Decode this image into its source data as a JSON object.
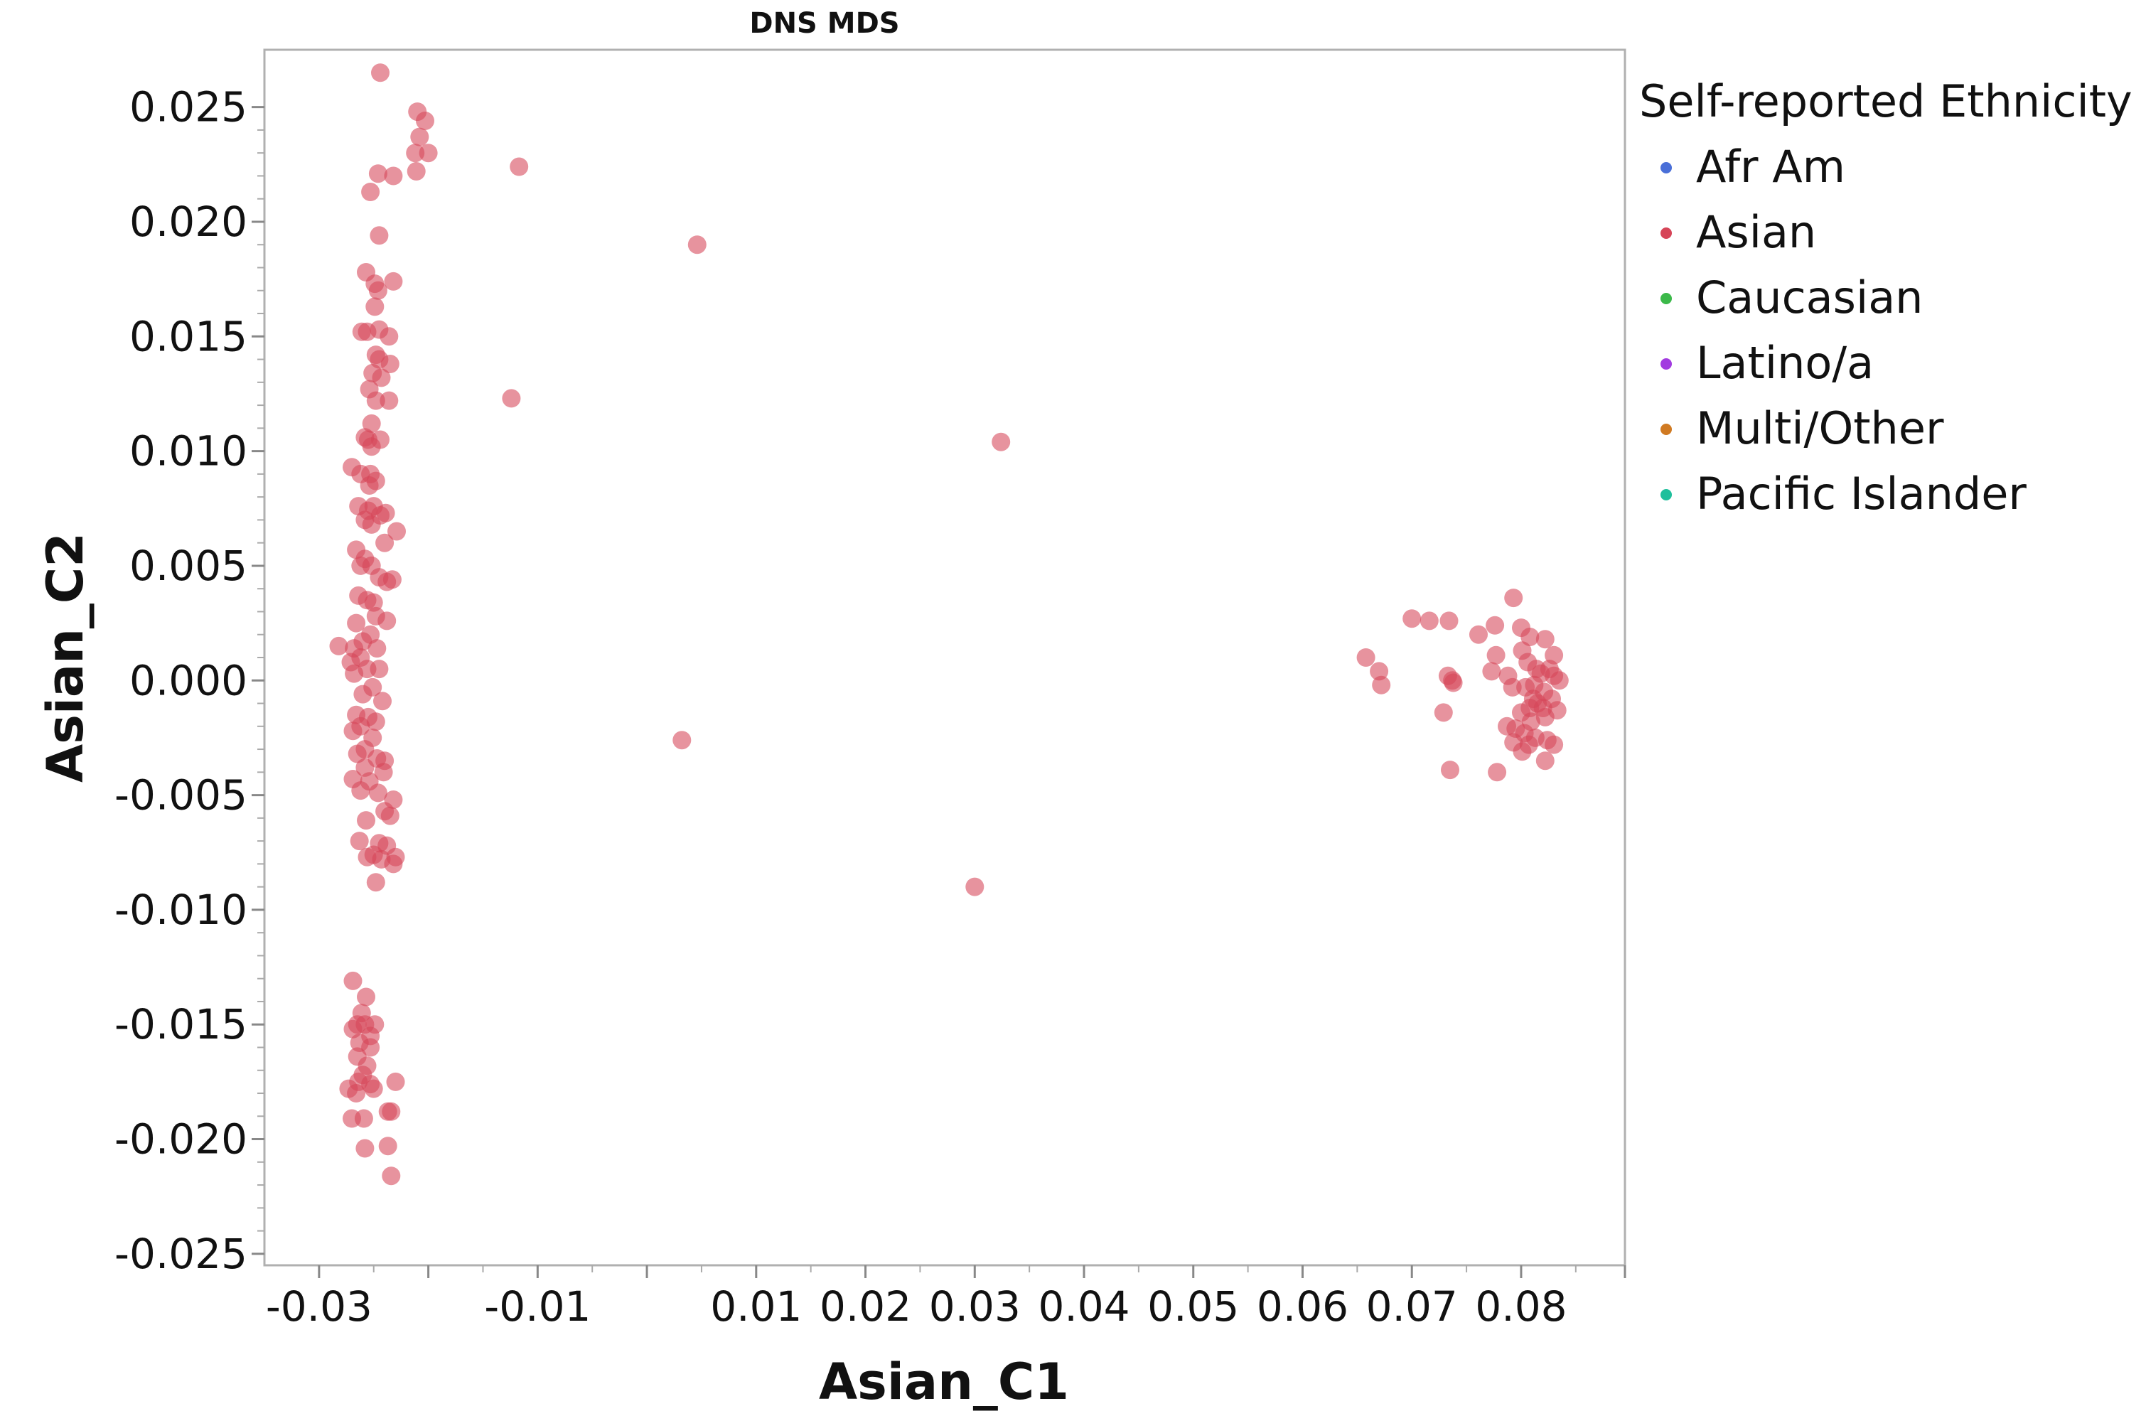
{
  "chart_data": {
    "type": "scatter",
    "title": "DNS MDS",
    "xlabel": "Asian_C1",
    "ylabel": "Asian_C2",
    "xlim": [
      -0.035,
      0.0895
    ],
    "ylim": [
      -0.0255,
      0.0275
    ],
    "x_ticks": [
      "-0.03",
      "-0.01",
      "0.01",
      "0.02",
      "0.03",
      "0.04",
      "0.05",
      "0.06",
      "0.07",
      "0.08"
    ],
    "y_ticks": [
      "0.025",
      "0.020",
      "0.015",
      "0.010",
      "0.005",
      "0.000",
      "-0.005",
      "-0.010",
      "-0.015",
      "-0.020",
      "-0.025"
    ],
    "grid": false,
    "legend": {
      "title": "Self-reported Ethnicity",
      "placement": "right",
      "entries": [
        {
          "name": "Afr Am",
          "color": "#4a6fd8"
        },
        {
          "name": "Asian",
          "color": "#d64558"
        },
        {
          "name": "Caucasian",
          "color": "#3cb94a"
        },
        {
          "name": "Latino/a",
          "color": "#a23be0"
        },
        {
          "name": "Multi/Other",
          "color": "#d07a22"
        },
        {
          "name": "Pacific Islander",
          "color": "#1fbf9c"
        }
      ]
    },
    "series": [
      {
        "name": "Asian",
        "color": "#d64558",
        "points": [
          [
            -0.0244,
            0.0265
          ],
          [
            -0.021,
            0.0248
          ],
          [
            -0.0203,
            0.0244
          ],
          [
            -0.0208,
            0.0237
          ],
          [
            -0.0212,
            0.023
          ],
          [
            -0.02,
            0.023
          ],
          [
            -0.0211,
            0.0222
          ],
          [
            -0.0232,
            0.022
          ],
          [
            -0.0246,
            0.0221
          ],
          [
            -0.0253,
            0.0213
          ],
          [
            -0.0245,
            0.0194
          ],
          [
            -0.0117,
            0.0224
          ],
          [
            0.0046,
            0.019
          ],
          [
            -0.0124,
            0.0123
          ],
          [
            0.0324,
            0.0104
          ],
          [
            0.0032,
            -0.0026
          ],
          [
            0.03,
            -0.009
          ],
          [
            -0.0257,
            0.0178
          ],
          [
            -0.0249,
            0.0173
          ],
          [
            -0.0232,
            0.0174
          ],
          [
            -0.0246,
            0.017
          ],
          [
            -0.0249,
            0.0163
          ],
          [
            -0.0245,
            0.0153
          ],
          [
            -0.0261,
            0.0152
          ],
          [
            -0.0256,
            0.0152
          ],
          [
            -0.0236,
            0.015
          ],
          [
            -0.0248,
            0.0142
          ],
          [
            -0.0245,
            0.014
          ],
          [
            -0.0235,
            0.0138
          ],
          [
            -0.0251,
            0.0134
          ],
          [
            -0.0243,
            0.0132
          ],
          [
            -0.0254,
            0.0127
          ],
          [
            -0.0236,
            0.0122
          ],
          [
            -0.0248,
            0.0122
          ],
          [
            -0.0252,
            0.0112
          ],
          [
            -0.0244,
            0.0105
          ],
          [
            -0.0258,
            0.0106
          ],
          [
            -0.0255,
            0.0105
          ],
          [
            -0.0252,
            0.0102
          ],
          [
            -0.027,
            0.0093
          ],
          [
            -0.0262,
            0.009
          ],
          [
            -0.0253,
            0.009
          ],
          [
            -0.0248,
            0.0087
          ],
          [
            -0.0254,
            0.0085
          ],
          [
            -0.0264,
            0.0076
          ],
          [
            -0.025,
            0.0076
          ],
          [
            -0.0255,
            0.0074
          ],
          [
            -0.0244,
            0.0072
          ],
          [
            -0.0258,
            0.007
          ],
          [
            -0.0239,
            0.0073
          ],
          [
            -0.0229,
            0.0065
          ],
          [
            -0.0252,
            0.0068
          ],
          [
            -0.024,
            0.006
          ],
          [
            -0.0266,
            0.0057
          ],
          [
            -0.0258,
            0.0053
          ],
          [
            -0.0262,
            0.005
          ],
          [
            -0.0252,
            0.005
          ],
          [
            -0.0245,
            0.0045
          ],
          [
            -0.0238,
            0.0043
          ],
          [
            -0.0233,
            0.0044
          ],
          [
            -0.025,
            0.0034
          ],
          [
            -0.0264,
            0.0037
          ],
          [
            -0.0256,
            0.0035
          ],
          [
            -0.0248,
            0.0028
          ],
          [
            -0.0266,
            0.0025
          ],
          [
            -0.0238,
            0.0026
          ],
          [
            -0.0253,
            0.002
          ],
          [
            -0.026,
            0.0017
          ],
          [
            -0.0282,
            0.0015
          ],
          [
            -0.0268,
            0.0014
          ],
          [
            -0.0247,
            0.0014
          ],
          [
            -0.0262,
            0.001
          ],
          [
            -0.0271,
            0.0008
          ],
          [
            -0.0256,
            0.0005
          ],
          [
            -0.0245,
            0.0005
          ],
          [
            -0.0268,
            0.0003
          ],
          [
            -0.0251,
            -0.0003
          ],
          [
            -0.026,
            -0.0006
          ],
          [
            -0.0242,
            -0.0009
          ],
          [
            -0.0266,
            -0.0015
          ],
          [
            -0.0255,
            -0.0016
          ],
          [
            -0.0248,
            -0.0018
          ],
          [
            -0.0262,
            -0.002
          ],
          [
            -0.0269,
            -0.0022
          ],
          [
            -0.0251,
            -0.0025
          ],
          [
            -0.0258,
            -0.003
          ],
          [
            -0.0265,
            -0.0032
          ],
          [
            -0.0247,
            -0.0034
          ],
          [
            -0.024,
            -0.0035
          ],
          [
            -0.0258,
            -0.0038
          ],
          [
            -0.0241,
            -0.004
          ],
          [
            -0.0269,
            -0.0043
          ],
          [
            -0.0254,
            -0.0044
          ],
          [
            -0.0262,
            -0.0048
          ],
          [
            -0.0246,
            -0.0049
          ],
          [
            -0.0232,
            -0.0052
          ],
          [
            -0.024,
            -0.0057
          ],
          [
            -0.0235,
            -0.0059
          ],
          [
            -0.0257,
            -0.0061
          ],
          [
            -0.0263,
            -0.007
          ],
          [
            -0.0245,
            -0.0071
          ],
          [
            -0.0238,
            -0.0072
          ],
          [
            -0.023,
            -0.0077
          ],
          [
            -0.0256,
            -0.0077
          ],
          [
            -0.025,
            -0.0076
          ],
          [
            -0.0243,
            -0.0078
          ],
          [
            -0.0232,
            -0.008
          ],
          [
            -0.0248,
            -0.0088
          ],
          [
            -0.0269,
            -0.0131
          ],
          [
            -0.0257,
            -0.0138
          ],
          [
            -0.0261,
            -0.0145
          ],
          [
            -0.0265,
            -0.015
          ],
          [
            -0.0269,
            -0.0152
          ],
          [
            -0.0258,
            -0.015
          ],
          [
            -0.0249,
            -0.015
          ],
          [
            -0.0253,
            -0.0155
          ],
          [
            -0.0263,
            -0.0158
          ],
          [
            -0.0253,
            -0.016
          ],
          [
            -0.0265,
            -0.0164
          ],
          [
            -0.0256,
            -0.0168
          ],
          [
            -0.026,
            -0.0172
          ],
          [
            -0.0264,
            -0.0175
          ],
          [
            -0.0273,
            -0.0178
          ],
          [
            -0.0253,
            -0.0176
          ],
          [
            -0.023,
            -0.0175
          ],
          [
            -0.0266,
            -0.018
          ],
          [
            -0.025,
            -0.0178
          ],
          [
            -0.0237,
            -0.0188
          ],
          [
            -0.0234,
            -0.0188
          ],
          [
            -0.0259,
            -0.0191
          ],
          [
            -0.027,
            -0.0191
          ],
          [
            -0.0237,
            -0.0203
          ],
          [
            -0.0258,
            -0.0204
          ],
          [
            -0.0234,
            -0.0216
          ],
          [
            0.07,
            0.0027
          ],
          [
            0.0716,
            0.0026
          ],
          [
            0.0734,
            0.0026
          ],
          [
            0.0761,
            0.002
          ],
          [
            0.0776,
            0.0024
          ],
          [
            0.0793,
            0.0036
          ],
          [
            0.08,
            0.0023
          ],
          [
            0.0808,
            0.0019
          ],
          [
            0.0822,
            0.0018
          ],
          [
            0.083,
            0.0011
          ],
          [
            0.0658,
            0.001
          ],
          [
            0.067,
            0.0004
          ],
          [
            0.0672,
            -0.0002
          ],
          [
            0.0733,
            0.0002
          ],
          [
            0.0738,
            -0.0001
          ],
          [
            0.0737,
            0.0
          ],
          [
            0.0777,
            0.0011
          ],
          [
            0.0773,
            0.0004
          ],
          [
            0.0788,
            0.0002
          ],
          [
            0.0792,
            -0.0003
          ],
          [
            0.0801,
            0.0013
          ],
          [
            0.0806,
            0.0008
          ],
          [
            0.0814,
            0.0005
          ],
          [
            0.0818,
            0.0003
          ],
          [
            0.0826,
            0.0005
          ],
          [
            0.083,
            0.0002
          ],
          [
            0.0835,
            0.0
          ],
          [
            0.0804,
            -0.0003
          ],
          [
            0.0812,
            -0.0002
          ],
          [
            0.0821,
            -0.0005
          ],
          [
            0.0828,
            -0.0008
          ],
          [
            0.0833,
            -0.0013
          ],
          [
            0.0815,
            -0.001
          ],
          [
            0.0808,
            -0.0012
          ],
          [
            0.08,
            -0.0014
          ],
          [
            0.0822,
            -0.0016
          ],
          [
            0.0809,
            -0.0018
          ],
          [
            0.0729,
            -0.0014
          ],
          [
            0.0787,
            -0.002
          ],
          [
            0.0795,
            -0.0021
          ],
          [
            0.0803,
            -0.0023
          ],
          [
            0.0813,
            -0.0025
          ],
          [
            0.0824,
            -0.0026
          ],
          [
            0.083,
            -0.0028
          ],
          [
            0.0801,
            -0.0031
          ],
          [
            0.0807,
            -0.0028
          ],
          [
            0.0793,
            -0.0027
          ],
          [
            0.0822,
            -0.0035
          ],
          [
            0.0735,
            -0.0039
          ],
          [
            0.0778,
            -0.004
          ],
          [
            0.082,
            -0.0012
          ],
          [
            0.0811,
            -0.0008
          ]
        ]
      }
    ]
  }
}
